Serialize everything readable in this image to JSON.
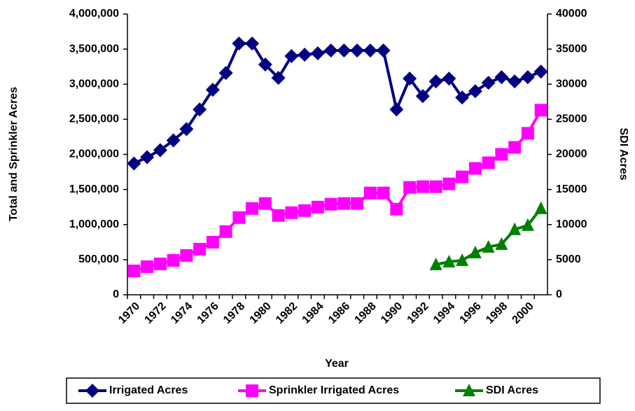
{
  "chart_data": {
    "type": "line",
    "x_label": "Year",
    "y_label": "Total and Sprinkler Acres",
    "y2_label": "SDI Acres",
    "categories": [
      "1970",
      null,
      "1972",
      null,
      "1974",
      null,
      "1976",
      null,
      "1978",
      null,
      "1980",
      null,
      "1982",
      null,
      "1984",
      null,
      "1986",
      null,
      "1988",
      null,
      "1990",
      null,
      "1992",
      null,
      "1994",
      null,
      "1996",
      null,
      "1998",
      null,
      "2000",
      null
    ],
    "series": [
      {
        "name": "Irrigated Acres",
        "color": "#000080",
        "marker": "diamond",
        "values": [
          1870000,
          1960000,
          2060000,
          2200000,
          2360000,
          2640000,
          2920000,
          3160000,
          3580000,
          3580000,
          3280000,
          3090000,
          3400000,
          3420000,
          3440000,
          3480000,
          3480000,
          3480000,
          3480000,
          3480000,
          2640000,
          3080000,
          2830000,
          3040000,
          3080000,
          2810000,
          2900000,
          3020000,
          3100000,
          3040000,
          3100000,
          3180000
        ]
      },
      {
        "name": "Sprinkler Irrigated Acres",
        "color": "#ff00ff",
        "marker": "square",
        "values": [
          340000,
          400000,
          440000,
          490000,
          560000,
          650000,
          750000,
          900000,
          1100000,
          1230000,
          1300000,
          1130000,
          1170000,
          1200000,
          1250000,
          1290000,
          1300000,
          1300000,
          1450000,
          1450000,
          1220000,
          1530000,
          1540000,
          1540000,
          1580000,
          1680000,
          1800000,
          1880000,
          2000000,
          2100000,
          2300000,
          2630000
        ]
      },
      {
        "name": "SDI Acres",
        "color": "#008000",
        "marker": "triangle",
        "axis": "y2",
        "values": [
          null,
          null,
          null,
          null,
          null,
          null,
          null,
          null,
          null,
          null,
          null,
          null,
          null,
          null,
          null,
          null,
          null,
          null,
          null,
          null,
          null,
          null,
          null,
          4300,
          4700,
          4900,
          6000,
          6800,
          7200,
          9300,
          9900,
          12300
        ]
      }
    ],
    "ylim": [
      0,
      4000000
    ],
    "yticks": [
      0,
      {
        "value": 500000,
        "label": "500,000"
      },
      {
        "value": 1000000,
        "label": "1,000,000"
      },
      {
        "value": 1500000,
        "label": "1,500,000"
      },
      {
        "value": 2000000,
        "label": "2,000,000"
      },
      {
        "value": 2500000,
        "label": "2,500,000"
      },
      {
        "value": 3000000,
        "label": "3,000,000"
      },
      {
        "value": 3500000,
        "label": "3,500,000"
      },
      {
        "value": 4000000,
        "label": "4,000,000"
      }
    ],
    "y2lim": [
      0,
      40000
    ],
    "y2ticks": [
      0,
      5000,
      10000,
      15000,
      20000,
      25000,
      30000,
      35000,
      40000
    ],
    "grid": false,
    "legend": "bottom"
  }
}
